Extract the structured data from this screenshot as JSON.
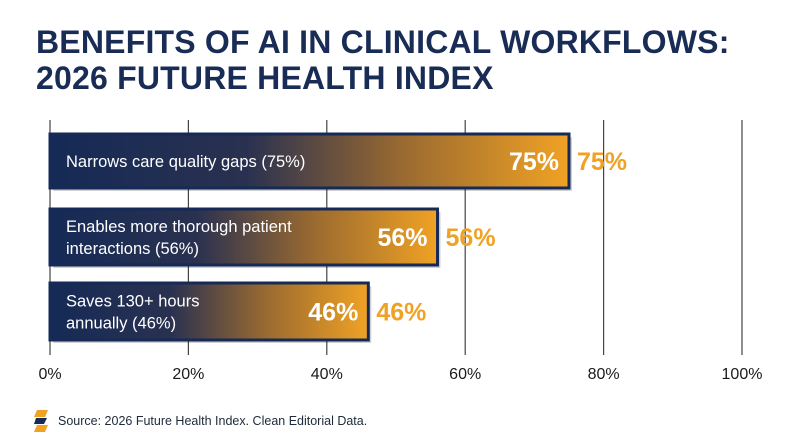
{
  "title_line1": "BENEFITS OF AI IN CLINICAL WORKFLOWS:",
  "title_line2": "2026 FUTURE HEALTH INDEX",
  "source": "Source: 2026 Future Health Index. Clean Editorial Data.",
  "colors": {
    "navy": "#152a56",
    "orange": "#f0a224",
    "title": "#182c55",
    "grid": "#444444"
  },
  "chart_data": {
    "type": "bar",
    "orientation": "horizontal",
    "categories": [
      "Narrows care quality gaps (75%)",
      "Enables more thorough patient interactions (56%)",
      "Saves 130+ hours annually (46%)"
    ],
    "category_lines": [
      [
        "Narrows care quality gaps (75%)"
      ],
      [
        "Enables more thorough patient",
        "interactions (56%)"
      ],
      [
        "Saves 130+ hours",
        "annually (46%)"
      ]
    ],
    "values": [
      75,
      56,
      46
    ],
    "value_labels": [
      "75%",
      "56%",
      "46%"
    ],
    "xlim": [
      0,
      100
    ],
    "xticks": [
      0,
      20,
      40,
      60,
      80,
      100
    ],
    "xtick_labels": [
      "0%",
      "20%",
      "40%",
      "60%",
      "80%",
      "100%"
    ],
    "grid": "vertical"
  }
}
